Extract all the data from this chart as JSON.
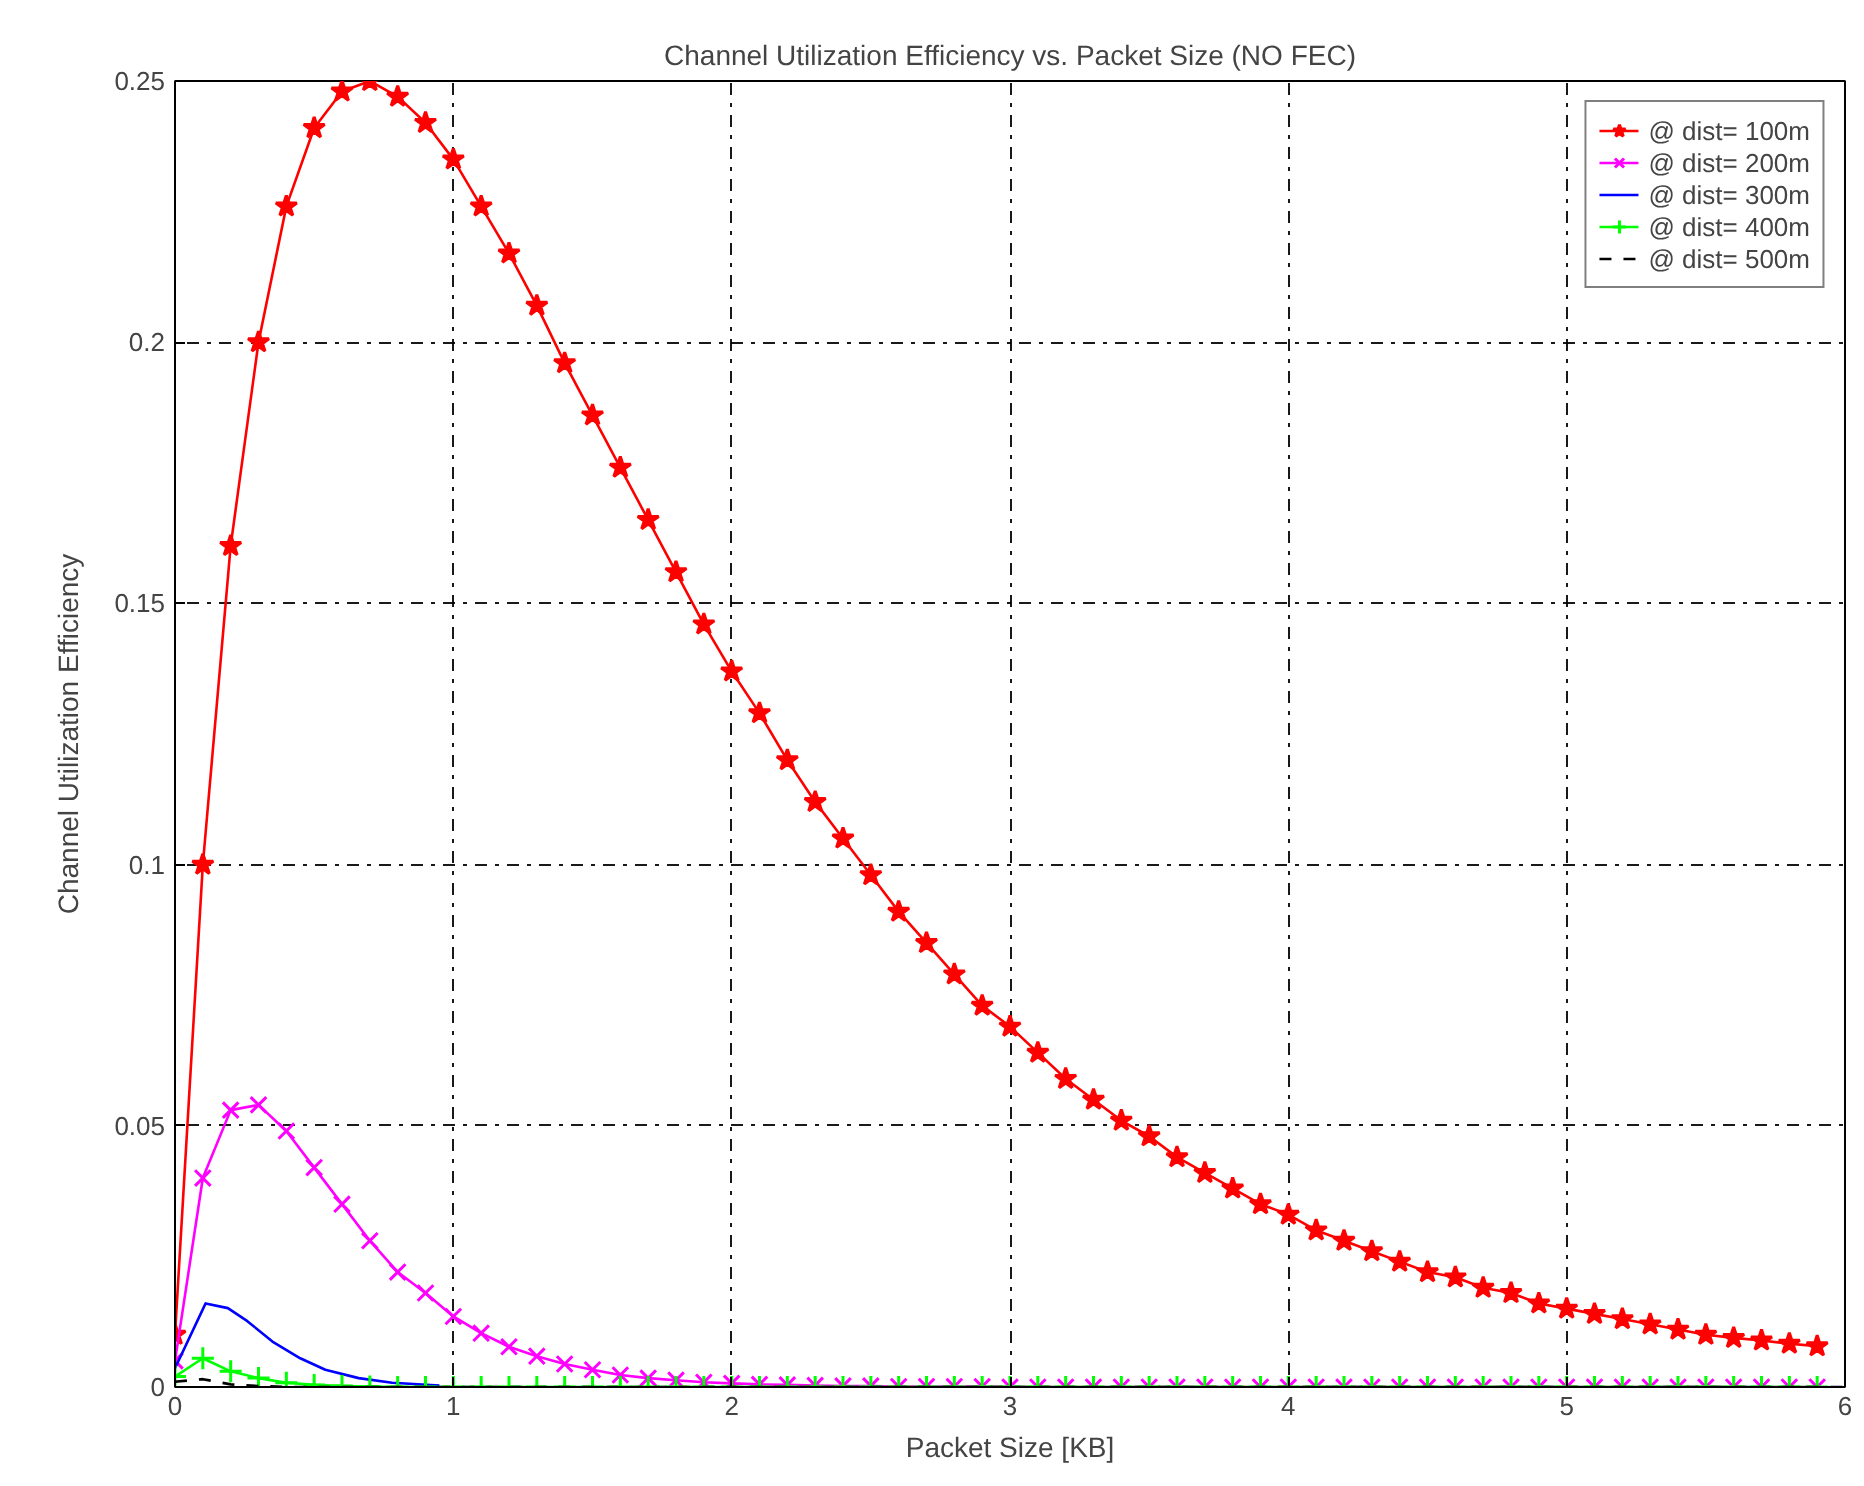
{
  "chart_data": {
    "type": "line",
    "title": "Channel Utilization Efficiency vs. Packet Size (NO FEC)",
    "xlabel": "Packet Size [KB]",
    "ylabel": "Channel Utilization Efficiency",
    "x": [
      0,
      0.1,
      0.2,
      0.3,
      0.4,
      0.5,
      0.6,
      0.7,
      0.8,
      0.9,
      1.0,
      1.1,
      1.2,
      1.3,
      1.4,
      1.5,
      1.6,
      1.7,
      1.8,
      1.9,
      2.0,
      2.1,
      2.2,
      2.3,
      2.4,
      2.5,
      2.6,
      2.7,
      2.8,
      2.9,
      3.0,
      3.1,
      3.2,
      3.3,
      3.4,
      3.5,
      3.6,
      3.7,
      3.8,
      3.9,
      4.0,
      4.1,
      4.2,
      4.3,
      4.4,
      4.5,
      4.6,
      4.7,
      4.8,
      4.9,
      5.0,
      5.1,
      5.2,
      5.3,
      5.4,
      5.5,
      5.6,
      5.7,
      5.8,
      5.9
    ],
    "series": [
      {
        "name": "@ dist= 100m",
        "color": "#ff0000",
        "marker": "star",
        "line_style": "solid",
        "values": [
          0.01,
          0.1,
          0.161,
          0.2,
          0.226,
          0.241,
          0.248,
          0.25,
          0.247,
          0.242,
          0.235,
          0.226,
          0.217,
          0.207,
          0.196,
          0.186,
          0.176,
          0.166,
          0.156,
          0.146,
          0.137,
          0.129,
          0.12,
          0.112,
          0.105,
          0.098,
          0.091,
          0.085,
          0.079,
          0.073,
          0.069,
          0.064,
          0.059,
          0.055,
          0.051,
          0.048,
          0.044,
          0.041,
          0.038,
          0.035,
          0.033,
          0.03,
          0.028,
          0.026,
          0.024,
          0.022,
          0.021,
          0.019,
          0.018,
          0.016,
          0.015,
          0.014,
          0.013,
          0.012,
          0.011,
          0.01,
          0.0094,
          0.0089,
          0.0083,
          0.0078
        ]
      },
      {
        "name": "@ dist= 200m",
        "color": "#ff00ff",
        "marker": "x",
        "line_style": "solid",
        "values": [
          0.005,
          0.04,
          0.053,
          0.054,
          0.049,
          0.042,
          0.035,
          0.028,
          0.022,
          0.018,
          0.0135,
          0.0103,
          0.0077,
          0.0059,
          0.0044,
          0.0033,
          0.0023,
          0.0017,
          0.0013,
          0.0009,
          0.0007,
          0.0005,
          0.0004,
          0.0003,
          0.0002,
          0.0002,
          0.0001,
          0.0001,
          0.0001,
          0.0001,
          0,
          0,
          0,
          0,
          0,
          0,
          0,
          0,
          0,
          0,
          0,
          0,
          0,
          0,
          0,
          0,
          0,
          0,
          0,
          0,
          0,
          0,
          0,
          0,
          0,
          0,
          0,
          0,
          0,
          0
        ]
      },
      {
        "name": "@ dist= 300m",
        "color": "#0000ff",
        "marker": "none",
        "line_style": "solid",
        "x": [
          0,
          0.11,
          0.19,
          0.26,
          0.35,
          0.45,
          0.54,
          0.66,
          0.78,
          0.95
        ],
        "values": [
          0.0036,
          0.016,
          0.0151,
          0.0126,
          0.0087,
          0.0055,
          0.0033,
          0.0017,
          0.0008,
          0.0003
        ]
      },
      {
        "name": "@ dist= 400m",
        "color": "#00ff00",
        "marker": "cross",
        "line_style": "solid",
        "values": [
          0.002,
          0.0055,
          0.003,
          0.0017,
          0.0008,
          0.0004,
          0.0002,
          0.0001,
          0,
          0,
          0,
          0,
          0,
          0,
          0,
          0,
          0,
          0,
          0,
          0,
          0,
          0,
          0,
          0,
          0,
          0,
          0,
          0,
          0,
          0,
          0,
          0,
          0,
          0,
          0,
          0,
          0,
          0,
          0,
          0,
          0,
          0,
          0,
          0,
          0,
          0,
          0,
          0,
          0,
          0,
          0,
          0,
          0,
          0,
          0,
          0,
          0,
          0,
          0,
          0
        ]
      },
      {
        "name": "@ dist= 500m",
        "color": "#000000",
        "marker": "none",
        "line_style": "dashed",
        "x": [
          0,
          0.1,
          0.2,
          0.3,
          0.4,
          6
        ],
        "values": [
          0.001,
          0.0015,
          0.0005,
          0.0002,
          0,
          0
        ]
      }
    ],
    "xlim": [
      0,
      6
    ],
    "xticks": [
      0,
      1,
      2,
      3,
      4,
      5,
      6
    ],
    "ylim": [
      0,
      0.25
    ],
    "yticks": [
      0,
      0.05,
      0.1,
      0.15,
      0.2,
      0.25
    ],
    "grid": true,
    "legend": "top right"
  }
}
